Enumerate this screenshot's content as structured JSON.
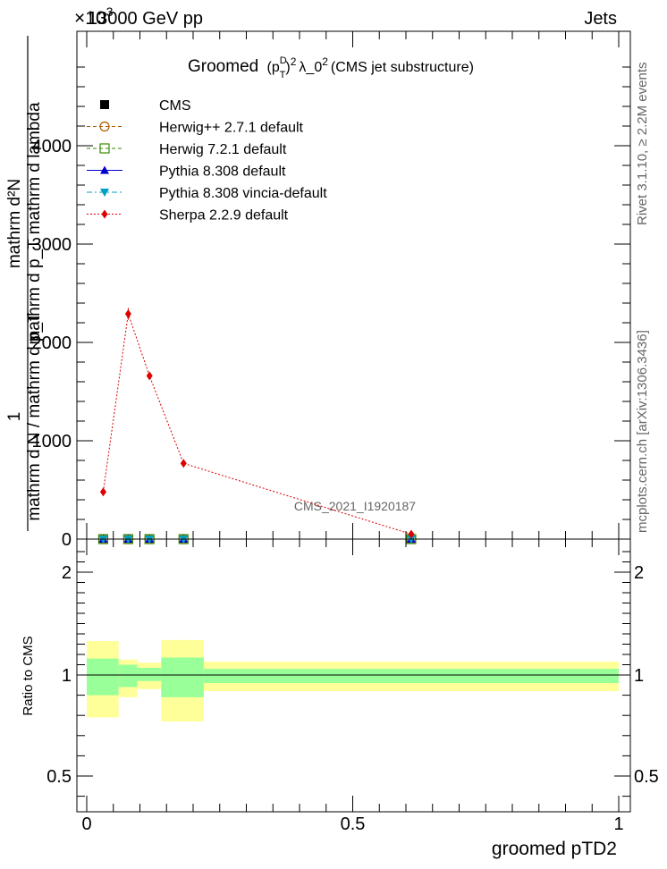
{
  "header": {
    "left": "13000 GeV pp",
    "right": "Jets",
    "exponent": "×10",
    "exponent_power": "3"
  },
  "side_labels": {
    "rivet": "Rivet 3.1.10, ≥ 2.2M events",
    "mcplots": "mcplots.cern.ch [arXiv:1306.3436]"
  },
  "watermark": "CMS_2021_I1920187",
  "colors": {
    "cms": "#000000",
    "herwigpp": "#b05a00",
    "herwig7": "#3a8a00",
    "pythia": "#0000cc",
    "vincia": "#00a0c0",
    "sherpa": "#dd0000",
    "band_inner": "#99ff99",
    "band_outer": "#ffff99"
  },
  "chart_data": [
    {
      "type": "line",
      "title": "Groomed (p_T^D)^2 λ_0^2 (CMS jet substructure)",
      "title_prefix": "Groomed",
      "title_suffix": "λ_0",
      "title_tail": "(CMS jet substructure)",
      "ylabel_numer": "mathrm d²N",
      "ylabel_numer_denom": "mathrm d p_T mathrm d lambda",
      "ylabel_denom": "mathrm d N / mathrm d p_T",
      "ylabel_one": "1",
      "xlim": [
        0,
        1.02
      ],
      "ylim": [
        0,
        5000
      ],
      "y_scale_factor": 1000,
      "yticks": [
        0,
        1000,
        2000,
        3000,
        4000
      ],
      "yticklabels": [
        "0",
        "1000",
        "2000",
        "3000",
        "4000"
      ],
      "legend_position": "top-left",
      "series": [
        {
          "name": "CMS",
          "marker": "square",
          "x": [],
          "y": []
        },
        {
          "name": "Herwig++ 2.7.1 default",
          "marker": "open-circle",
          "style": "dashed",
          "x": [
            0.031,
            0.078,
            0.118,
            0.182,
            0.61
          ],
          "y": [
            0,
            0,
            0,
            0,
            0
          ]
        },
        {
          "name": "Herwig 7.2.1 default",
          "marker": "open-square",
          "style": "dashed",
          "x": [
            0.031,
            0.078,
            0.118,
            0.182,
            0.61
          ],
          "y": [
            0,
            0,
            0,
            0,
            0
          ]
        },
        {
          "name": "Pythia 8.308 default",
          "marker": "triangle-up",
          "style": "solid",
          "x": [
            0.031,
            0.078,
            0.118,
            0.182,
            0.61
          ],
          "y": [
            0,
            0,
            0,
            0,
            0
          ]
        },
        {
          "name": "Pythia 8.308 vincia-default",
          "marker": "triangle-down",
          "style": "dashdot",
          "x": [
            0.031,
            0.078,
            0.118,
            0.182,
            0.61
          ],
          "y": [
            0,
            0,
            0,
            0,
            0
          ]
        },
        {
          "name": "Sherpa 2.2.9 default",
          "marker": "diamond",
          "style": "dotted",
          "x": [
            0.031,
            0.078,
            0.118,
            0.182,
            0.61
          ],
          "y": [
            0.48,
            2.29,
            1.66,
            0.77,
            0.05
          ],
          "yerr": [
            0.02,
            0.06,
            0.03,
            0.02,
            0.005
          ]
        }
      ]
    },
    {
      "type": "area",
      "ylabel": "Ratio to CMS",
      "xlabel": "groomed pTD2",
      "xlim": [
        0,
        1.02
      ],
      "ylim": [
        0.34,
        2.26
      ],
      "yticks": [
        0.5,
        1,
        2
      ],
      "yticklabels": [
        "0.5",
        "1",
        "2"
      ],
      "xticks": [
        0,
        0.5,
        1
      ],
      "xticklabels": [
        "0",
        "0.5",
        "1"
      ],
      "bands": [
        {
          "x0": 0.0,
          "x1": 0.06,
          "inner": [
            0.9,
            1.16
          ],
          "outer": [
            0.79,
            1.33
          ]
        },
        {
          "x0": 0.06,
          "x1": 0.095,
          "inner": [
            0.94,
            1.1
          ],
          "outer": [
            0.89,
            1.15
          ]
        },
        {
          "x0": 0.095,
          "x1": 0.14,
          "inner": [
            0.97,
            1.07
          ],
          "outer": [
            0.93,
            1.12
          ]
        },
        {
          "x0": 0.14,
          "x1": 0.22,
          "inner": [
            0.89,
            1.17
          ],
          "outer": [
            0.77,
            1.34
          ]
        },
        {
          "x0": 0.22,
          "x1": 1.0,
          "inner": [
            0.96,
            1.06
          ],
          "outer": [
            0.92,
            1.13
          ]
        }
      ]
    }
  ]
}
